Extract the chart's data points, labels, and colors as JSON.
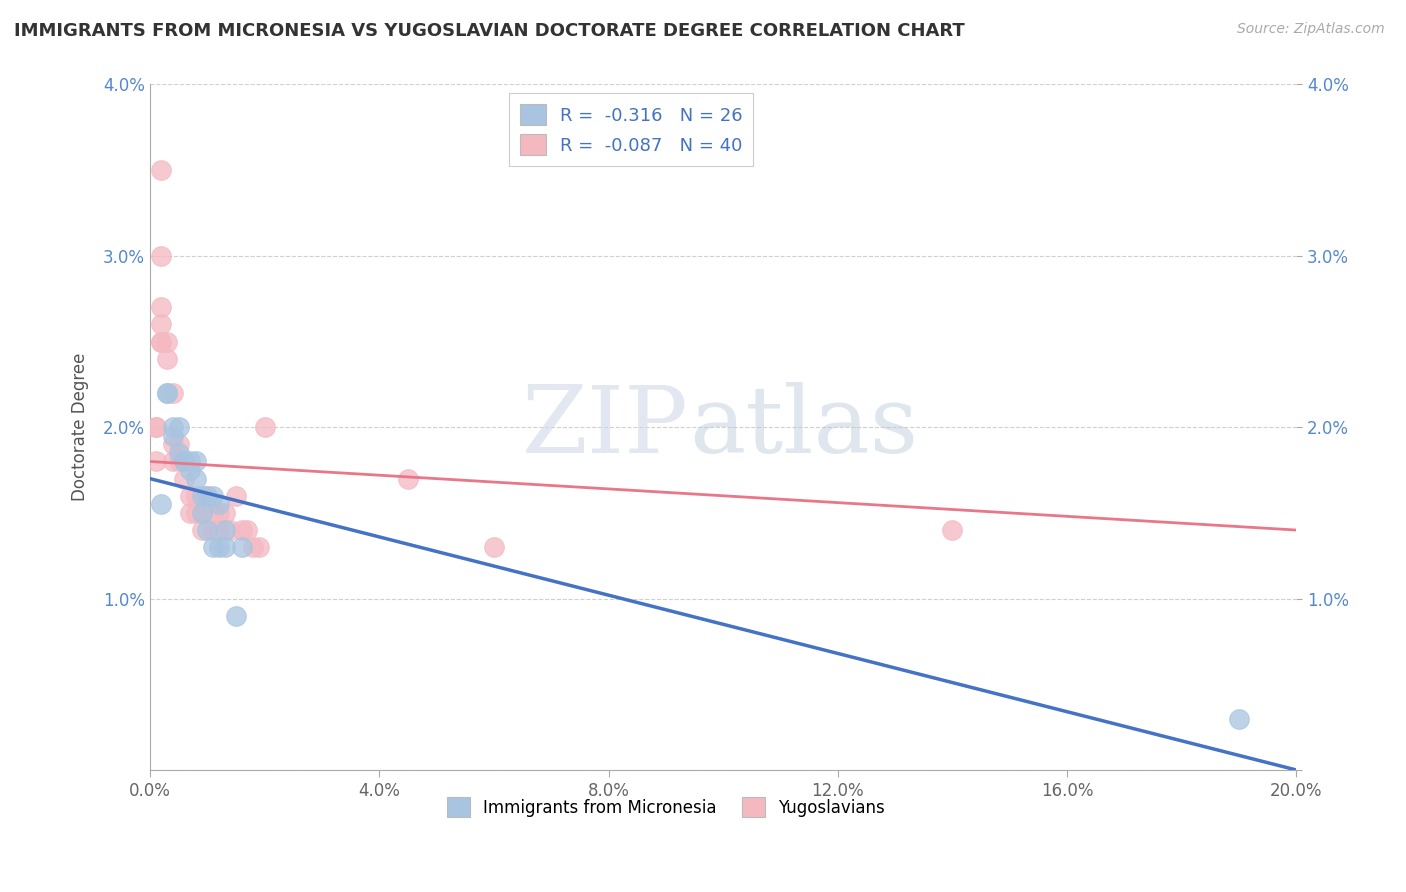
{
  "title": "IMMIGRANTS FROM MICRONESIA VS YUGOSLAVIAN DOCTORATE DEGREE CORRELATION CHART",
  "source": "Source: ZipAtlas.com",
  "xlabel": "",
  "ylabel": "Doctorate Degree",
  "xlim": [
    0.0,
    0.2
  ],
  "ylim": [
    0.0,
    0.04
  ],
  "xticks": [
    0.0,
    0.04,
    0.08,
    0.12,
    0.16,
    0.2
  ],
  "yticks": [
    0.0,
    0.01,
    0.02,
    0.03,
    0.04
  ],
  "xtick_labels": [
    "0.0%",
    "4.0%",
    "8.0%",
    "12.0%",
    "16.0%",
    "20.0%"
  ],
  "ytick_labels_left": [
    "",
    "1.0%",
    "2.0%",
    "3.0%",
    "4.0%"
  ],
  "ytick_labels_right": [
    "",
    "1.0%",
    "2.0%",
    "3.0%",
    "4.0%"
  ],
  "legend_blue_r": "R =  -0.316",
  "legend_blue_n": "N = 26",
  "legend_pink_r": "R =  -0.087",
  "legend_pink_n": "N = 40",
  "legend1_label": "Immigrants from Micronesia",
  "legend2_label": "Yugoslavians",
  "blue_color": "#a8c4e0",
  "pink_color": "#f4b8c1",
  "blue_line_color": "#4472c4",
  "pink_line_color": "#e8778a",
  "blue_scatter": [
    [
      0.002,
      0.0155
    ],
    [
      0.003,
      0.022
    ],
    [
      0.003,
      0.022
    ],
    [
      0.004,
      0.0195
    ],
    [
      0.004,
      0.02
    ],
    [
      0.005,
      0.0185
    ],
    [
      0.005,
      0.02
    ],
    [
      0.006,
      0.018
    ],
    [
      0.006,
      0.018
    ],
    [
      0.007,
      0.0175
    ],
    [
      0.007,
      0.018
    ],
    [
      0.008,
      0.018
    ],
    [
      0.008,
      0.017
    ],
    [
      0.009,
      0.016
    ],
    [
      0.009,
      0.015
    ],
    [
      0.01,
      0.016
    ],
    [
      0.01,
      0.014
    ],
    [
      0.011,
      0.016
    ],
    [
      0.011,
      0.013
    ],
    [
      0.012,
      0.0155
    ],
    [
      0.012,
      0.013
    ],
    [
      0.013,
      0.014
    ],
    [
      0.013,
      0.013
    ],
    [
      0.015,
      0.009
    ],
    [
      0.016,
      0.013
    ],
    [
      0.19,
      0.003
    ]
  ],
  "pink_scatter": [
    [
      0.001,
      0.02
    ],
    [
      0.001,
      0.02
    ],
    [
      0.001,
      0.018
    ],
    [
      0.002,
      0.035
    ],
    [
      0.002,
      0.03
    ],
    [
      0.002,
      0.027
    ],
    [
      0.002,
      0.026
    ],
    [
      0.002,
      0.025
    ],
    [
      0.002,
      0.025
    ],
    [
      0.003,
      0.025
    ],
    [
      0.003,
      0.024
    ],
    [
      0.004,
      0.022
    ],
    [
      0.004,
      0.019
    ],
    [
      0.004,
      0.018
    ],
    [
      0.005,
      0.019
    ],
    [
      0.005,
      0.018
    ],
    [
      0.006,
      0.018
    ],
    [
      0.006,
      0.017
    ],
    [
      0.007,
      0.016
    ],
    [
      0.007,
      0.015
    ],
    [
      0.008,
      0.016
    ],
    [
      0.008,
      0.015
    ],
    [
      0.009,
      0.015
    ],
    [
      0.009,
      0.014
    ],
    [
      0.01,
      0.016
    ],
    [
      0.011,
      0.015
    ],
    [
      0.011,
      0.014
    ],
    [
      0.012,
      0.015
    ],
    [
      0.012,
      0.014
    ],
    [
      0.013,
      0.015
    ],
    [
      0.014,
      0.014
    ],
    [
      0.015,
      0.016
    ],
    [
      0.016,
      0.014
    ],
    [
      0.017,
      0.014
    ],
    [
      0.018,
      0.013
    ],
    [
      0.019,
      0.013
    ],
    [
      0.02,
      0.02
    ],
    [
      0.045,
      0.017
    ],
    [
      0.06,
      0.013
    ],
    [
      0.14,
      0.014
    ]
  ],
  "blue_line": [
    0.0,
    0.2,
    0.017,
    0.0
  ],
  "pink_line": [
    0.0,
    0.2,
    0.018,
    0.014
  ],
  "watermark_zip": "ZIP",
  "watermark_atlas": "atlas",
  "background_color": "#ffffff",
  "grid_color": "#d0d0d0"
}
